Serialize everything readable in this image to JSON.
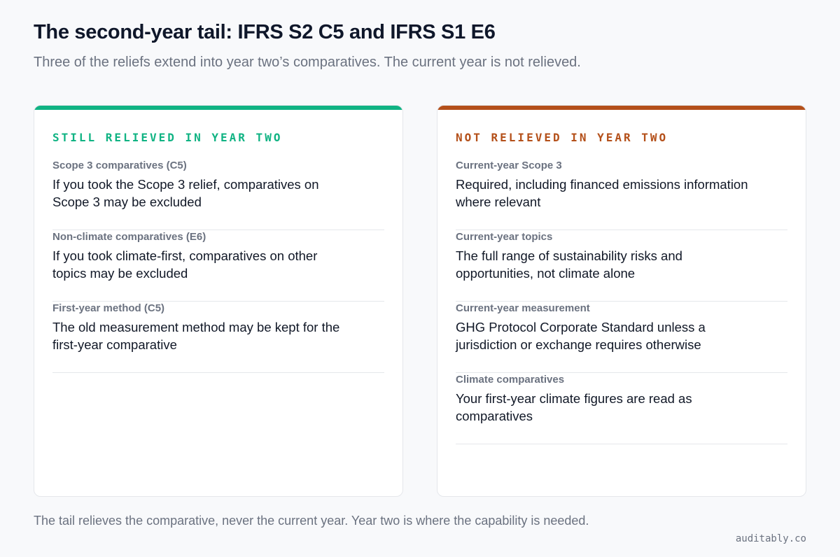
{
  "title": "The second-year tail: IFRS S2 C5 and IFRS S1 E6",
  "subtitle": "Three of the reliefs extend into year two’s comparatives. The current year is not relieved.",
  "colors": {
    "relieved": "#10b383",
    "not_relieved": "#b4501a"
  },
  "left": {
    "heading": "STILL RELIEVED IN YEAR TWO",
    "items": [
      {
        "label": "Scope 3 comparatives (C5)",
        "text": "If you took the Scope 3 relief, comparatives on Scope 3 may be excluded"
      },
      {
        "label": "Non-climate comparatives (E6)",
        "text": "If you took climate-first, comparatives on other topics may be excluded"
      },
      {
        "label": "First-year method (C5)",
        "text": "The old measurement method may be kept for the first-year comparative"
      }
    ]
  },
  "right": {
    "heading": "NOT RELIEVED IN YEAR TWO",
    "items": [
      {
        "label": "Current-year Scope 3",
        "text": "Required, including financed emissions information where relevant"
      },
      {
        "label": "Current-year topics",
        "text": "The full range of sustainability risks and opportunities, not climate alone"
      },
      {
        "label": "Current-year measurement",
        "text": "GHG Protocol Corporate Standard unless a jurisdiction or exchange requires otherwise"
      },
      {
        "label": "Climate comparatives",
        "text": "Your first-year climate figures are read as comparatives"
      }
    ]
  },
  "footer": "The tail relieves the comparative, never the current year. Year two is where the capability is needed.",
  "brand": "auditably.co"
}
